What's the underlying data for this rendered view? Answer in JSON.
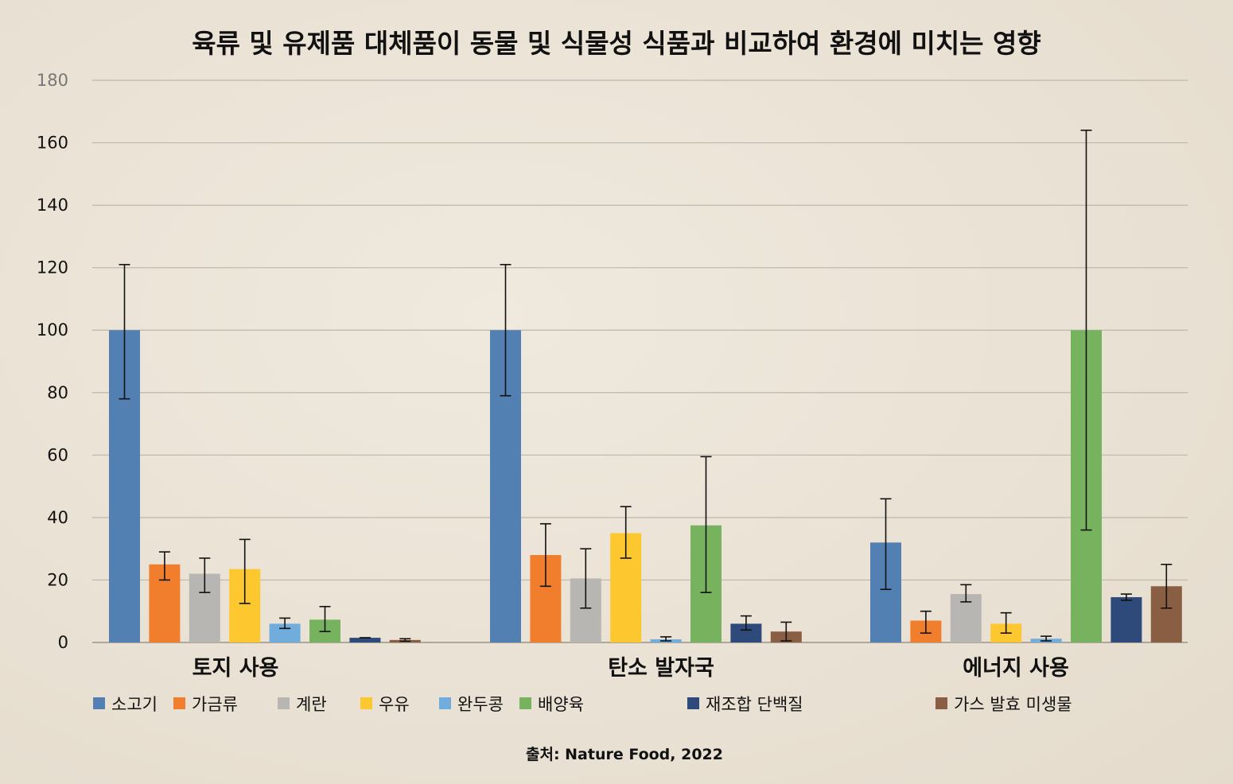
{
  "chart_data": {
    "type": "bar",
    "title": "육류 및 유제품 대체품이 동물 및 식물성 식품과 비교하여 환경에 미치는 영향",
    "categories": [
      "토지 사용",
      "탄소 발자국",
      "에너지 사용"
    ],
    "ylim": [
      0,
      180
    ],
    "yticks": [
      0,
      20,
      40,
      60,
      80,
      100,
      120,
      140,
      160,
      180
    ],
    "grid": true,
    "legend_position": "bottom",
    "series": [
      {
        "name": "소고기",
        "color": "#5380b2",
        "values": [
          100,
          100,
          32
        ],
        "err_low": [
          78,
          79,
          17
        ],
        "err_high": [
          121,
          121,
          46
        ]
      },
      {
        "name": "가금류",
        "color": "#f07e2d",
        "values": [
          25,
          28,
          7
        ],
        "err_low": [
          20,
          18,
          3
        ],
        "err_high": [
          29,
          38,
          10
        ]
      },
      {
        "name": "계란",
        "color": "#b8b6b2",
        "values": [
          22,
          20.5,
          15.5
        ],
        "err_low": [
          16,
          11,
          13
        ],
        "err_high": [
          27,
          30,
          18.5
        ]
      },
      {
        "name": "우유",
        "color": "#fdc72f",
        "values": [
          23.5,
          35,
          6
        ],
        "err_low": [
          12.5,
          27,
          3
        ],
        "err_high": [
          33,
          43.5,
          9.5
        ]
      },
      {
        "name": "완두콩",
        "color": "#70acdc",
        "values": [
          6,
          1,
          1.2
        ],
        "err_low": [
          4.5,
          0.5,
          0.5
        ],
        "err_high": [
          7.8,
          1.8,
          2
        ]
      },
      {
        "name": "배양육",
        "color": "#77b35e",
        "values": [
          7.3,
          37.5,
          100
        ],
        "err_low": [
          3.5,
          16,
          36
        ],
        "err_high": [
          11.5,
          59.5,
          164
        ]
      },
      {
        "name": "재조합 단백질",
        "color": "#2d4a7a",
        "values": [
          1.5,
          6,
          14.5
        ],
        "err_low": [
          1.5,
          4,
          13.5
        ],
        "err_high": [
          1.5,
          8.5,
          15.5
        ]
      },
      {
        "name": "가스 발효 미생물",
        "color": "#8a5e42",
        "values": [
          0.8,
          3.5,
          18
        ],
        "err_low": [
          0.4,
          0.5,
          11
        ],
        "err_high": [
          1.2,
          6.5,
          25
        ]
      }
    ]
  },
  "source_text": "출처: Nature Food, 2022"
}
